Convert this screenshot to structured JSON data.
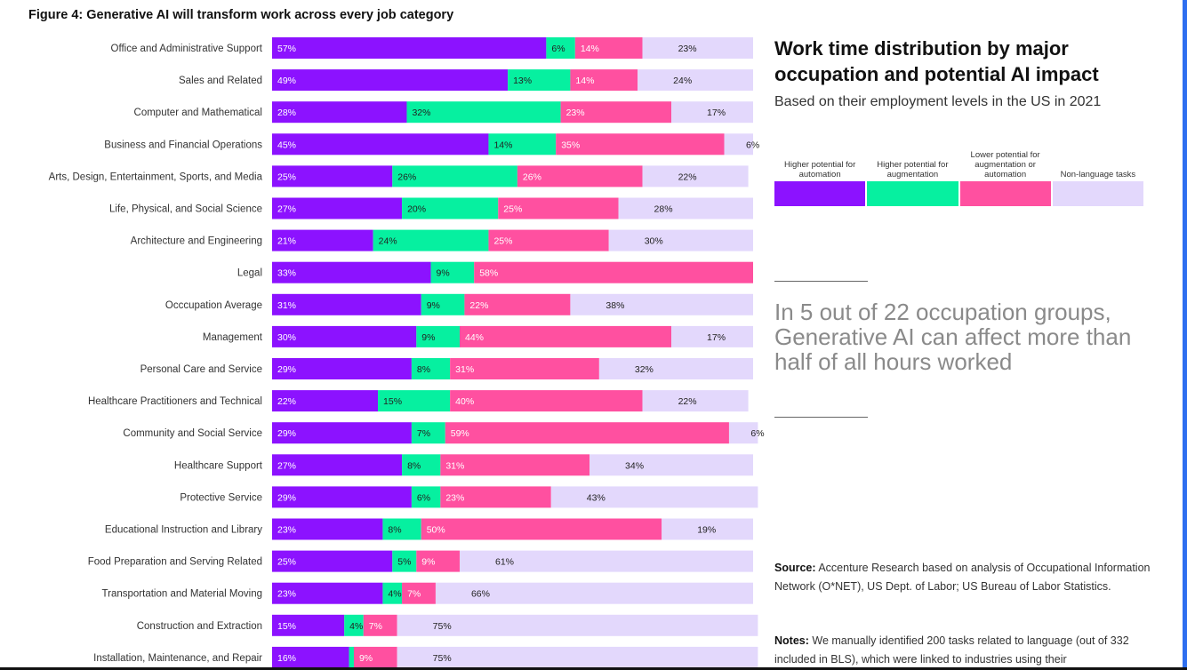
{
  "figure": {
    "title": "Figure 4: Generative AI will transform work across every job category"
  },
  "side": {
    "title": "Work time distribution by major occupation and potential AI impact",
    "subtitle": "Based on their employment levels in the US in 2021",
    "quote": "In 5 out of 22 occupation groups, Generative AI can affect more than half of all hours worked",
    "source_label": "Source:",
    "source_text": "Accenture Research based on analysis of Occupational Information Network (O*NET), US Dept. of Labor; US Bureau of Labor Statistics.",
    "notes_label": "Notes:",
    "notes_text": "We manually identified 200 tasks related to language (out of 332 included in BLS), which were linked to industries using their"
  },
  "colors": {
    "automation": "#8c12ff",
    "augmentation": "#06f0a0",
    "lower": "#ff50a0",
    "nonlanguage": "#e3d8fc"
  },
  "chart_data": {
    "type": "bar",
    "orientation": "horizontal",
    "stacked": true,
    "xlim": [
      0,
      100
    ],
    "categories": [
      "Office and Administrative Support",
      "Sales and Related",
      "Computer and Mathematical",
      "Business and Financial Operations",
      "Arts, Design, Entertainment, Sports, and Media",
      "Life, Physical, and Social Science",
      "Architecture and Engineering",
      "Legal",
      "Occcupation Average",
      "Management",
      "Personal Care and Service",
      "Healthcare Practitioners and Technical",
      "Community and Social Service",
      "Healthcare Support",
      "Protective Service",
      "Educational Instruction and Library",
      "Food Preparation and Serving Related",
      "Transportation and Material Moving",
      "Construction and Extraction",
      "Installation, Maintenance, and Repair"
    ],
    "series": [
      {
        "name": "Higher potential for automation",
        "color": "#8c12ff",
        "values": [
          57,
          49,
          28,
          45,
          25,
          27,
          21,
          33,
          31,
          30,
          29,
          22,
          29,
          27,
          29,
          23,
          25,
          23,
          15,
          16
        ]
      },
      {
        "name": "Higher potential for augmentation",
        "color": "#06f0a0",
        "values": [
          6,
          13,
          32,
          14,
          26,
          20,
          24,
          9,
          9,
          9,
          8,
          15,
          7,
          8,
          6,
          8,
          5,
          4,
          4,
          1
        ]
      },
      {
        "name": "Lower potential for augmentation or automation",
        "color": "#ff50a0",
        "values": [
          14,
          14,
          23,
          35,
          26,
          25,
          25,
          58,
          22,
          44,
          31,
          40,
          59,
          31,
          23,
          50,
          9,
          7,
          7,
          9
        ]
      },
      {
        "name": "Non-language tasks",
        "color": "#e3d8fc",
        "values": [
          23,
          24,
          17,
          6,
          22,
          28,
          30,
          0,
          38,
          17,
          32,
          22,
          6,
          34,
          43,
          19,
          61,
          66,
          75,
          75
        ]
      }
    ]
  }
}
